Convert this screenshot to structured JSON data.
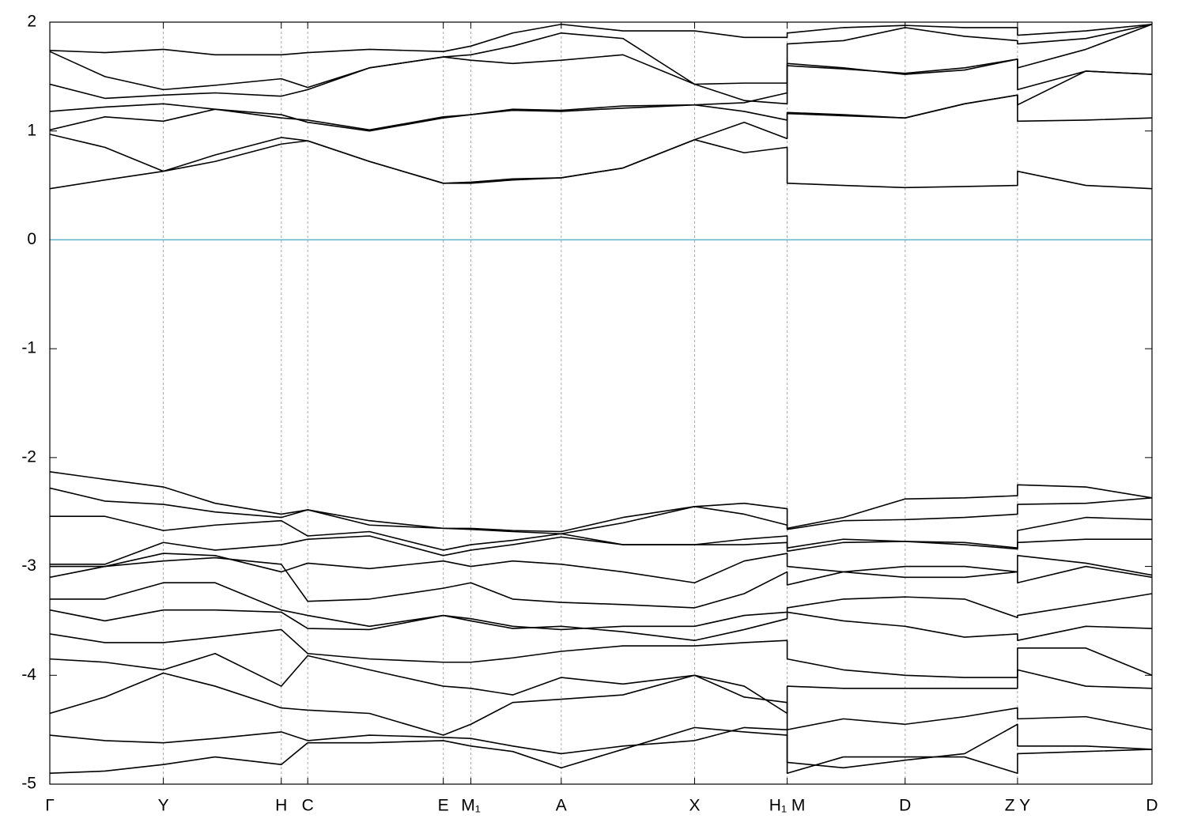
{
  "chart_data": {
    "type": "line",
    "x": [
      0,
      0.05,
      0.103,
      0.15,
      0.21,
      0.234,
      0.29,
      0.357,
      0.382,
      0.42,
      0.464,
      0.52,
      0.585,
      0.63,
      0.669,
      0.669,
      0.72,
      0.776,
      0.83,
      0.878,
      0.878,
      0.94,
      1
    ],
    "xlim": [
      0,
      1
    ],
    "xticks": [
      {
        "value": 0,
        "label": "Γ"
      },
      {
        "value": 0.103,
        "label": "Y"
      },
      {
        "value": 0.21,
        "label": "H"
      },
      {
        "value": 0.234,
        "label": "C"
      },
      {
        "value": 0.357,
        "label": "E"
      },
      {
        "value": 0.382,
        "label": "M₁"
      },
      {
        "value": 0.464,
        "label": "A"
      },
      {
        "value": 0.585,
        "label": "X"
      },
      {
        "value": 0.669,
        "label": "H₁ M"
      },
      {
        "value": 0.776,
        "label": "D"
      },
      {
        "value": 0.878,
        "label": "Z Y"
      },
      {
        "value": 1,
        "label": "D"
      }
    ],
    "ylim": [
      -5,
      2
    ],
    "yticks": [
      -5,
      -4,
      -3,
      -2,
      -1,
      0,
      1,
      2
    ],
    "grid": "x",
    "line_color": "#000000",
    "fermi_level": 0,
    "fermi_color": "#5ab4c8",
    "series": [
      {
        "values": [
          0.47,
          0.55,
          0.63,
          0.72,
          0.88,
          0.91,
          0.72,
          0.52,
          0.52,
          0.55,
          0.57,
          0.66,
          0.92,
          0.8,
          0.85,
          0.52,
          0.5,
          0.48,
          0.49,
          0.5,
          0.63,
          0.5,
          0.47
        ]
      },
      {
        "values": [
          0.97,
          0.85,
          0.63,
          0.78,
          0.94,
          0.91,
          0.72,
          0.52,
          0.53,
          0.56,
          0.57,
          0.66,
          0.92,
          1.08,
          0.93,
          1.16,
          1.14,
          1.12,
          1.25,
          1.33,
          1.09,
          1.1,
          1.12
        ]
      },
      {
        "values": [
          1.01,
          1.13,
          1.09,
          1.2,
          1.15,
          1.08,
          1.0,
          1.12,
          1.15,
          1.19,
          1.18,
          1.21,
          1.24,
          1.18,
          1.1,
          1.17,
          1.15,
          1.12,
          1.25,
          1.33,
          1.24,
          1.55,
          1.52
        ]
      },
      {
        "values": [
          1.18,
          1.22,
          1.25,
          1.2,
          1.12,
          1.1,
          1.01,
          1.13,
          1.15,
          1.2,
          1.19,
          1.23,
          1.24,
          1.26,
          1.35,
          1.6,
          1.57,
          1.53,
          1.58,
          1.66,
          1.38,
          1.55,
          1.52
        ]
      },
      {
        "values": [
          1.43,
          1.3,
          1.33,
          1.35,
          1.32,
          1.38,
          1.58,
          1.68,
          1.65,
          1.62,
          1.65,
          1.7,
          1.43,
          1.44,
          1.44,
          1.62,
          1.58,
          1.52,
          1.56,
          1.66,
          1.58,
          1.75,
          1.98
        ]
      },
      {
        "values": [
          1.73,
          1.5,
          1.38,
          1.42,
          1.48,
          1.4,
          1.58,
          1.68,
          1.7,
          1.78,
          1.9,
          1.85,
          1.43,
          1.28,
          1.25,
          1.8,
          1.83,
          1.95,
          1.87,
          1.83,
          1.8,
          1.85,
          1.98
        ]
      },
      {
        "values": [
          1.74,
          1.72,
          1.75,
          1.7,
          1.7,
          1.72,
          1.75,
          1.73,
          1.78,
          1.9,
          1.98,
          1.92,
          1.92,
          1.86,
          1.86,
          1.9,
          1.95,
          1.97,
          1.95,
          1.95,
          1.88,
          1.92,
          1.98
        ]
      },
      {
        "values": [
          -2.13,
          -2.2,
          -2.27,
          -2.42,
          -2.52,
          -2.48,
          -2.58,
          -2.65,
          -2.65,
          -2.67,
          -2.68,
          -2.55,
          -2.45,
          -2.42,
          -2.47,
          -2.65,
          -2.55,
          -2.38,
          -2.37,
          -2.35,
          -2.25,
          -2.27,
          -2.37
        ]
      },
      {
        "values": [
          -2.28,
          -2.4,
          -2.43,
          -2.5,
          -2.55,
          -2.48,
          -2.62,
          -2.65,
          -2.66,
          -2.68,
          -2.7,
          -2.6,
          -2.45,
          -2.52,
          -2.62,
          -2.66,
          -2.58,
          -2.57,
          -2.55,
          -2.52,
          -2.43,
          -2.42,
          -2.37
        ]
      },
      {
        "values": [
          -2.54,
          -2.54,
          -2.67,
          -2.62,
          -2.58,
          -2.72,
          -2.68,
          -2.85,
          -2.8,
          -2.76,
          -2.7,
          -2.8,
          -2.8,
          -2.75,
          -2.72,
          -2.83,
          -2.75,
          -2.77,
          -2.78,
          -2.83,
          -2.67,
          -2.55,
          -2.57
        ]
      },
      {
        "values": [
          -2.98,
          -2.98,
          -2.78,
          -2.85,
          -2.8,
          -2.75,
          -2.72,
          -2.9,
          -2.85,
          -2.8,
          -2.73,
          -2.8,
          -2.8,
          -2.8,
          -2.78,
          -2.86,
          -2.78,
          -2.77,
          -2.8,
          -2.84,
          -2.78,
          -2.75,
          -2.75
        ]
      },
      {
        "values": [
          -3.0,
          -3.0,
          -2.88,
          -2.9,
          -3.05,
          -2.97,
          -3.02,
          -2.95,
          -3.0,
          -2.95,
          -2.98,
          -3.05,
          -3.15,
          -2.95,
          -2.88,
          -3.0,
          -3.05,
          -3.1,
          -3.1,
          -3.05,
          -2.9,
          -2.97,
          -3.08
        ]
      },
      {
        "values": [
          -3.1,
          -3.0,
          -2.95,
          -2.92,
          -2.98,
          -3.32,
          -3.3,
          -3.2,
          -3.15,
          -3.3,
          -3.33,
          -3.35,
          -3.38,
          -3.25,
          -3.05,
          -3.17,
          -3.05,
          -3.0,
          -3.0,
          -3.05,
          -3.15,
          -3.0,
          -3.1
        ]
      },
      {
        "values": [
          -3.3,
          -3.3,
          -3.15,
          -3.15,
          -3.4,
          -3.45,
          -3.55,
          -3.45,
          -3.48,
          -3.55,
          -3.58,
          -3.55,
          -3.55,
          -3.45,
          -3.42,
          -3.38,
          -3.3,
          -3.28,
          -3.3,
          -3.47,
          -3.45,
          -3.35,
          -3.25
        ]
      },
      {
        "values": [
          -3.4,
          -3.5,
          -3.4,
          -3.4,
          -3.42,
          -3.57,
          -3.58,
          -3.45,
          -3.5,
          -3.57,
          -3.55,
          -3.6,
          -3.68,
          -3.58,
          -3.48,
          -3.42,
          -3.5,
          -3.55,
          -3.65,
          -3.62,
          -3.68,
          -3.55,
          -3.57
        ]
      },
      {
        "values": [
          -3.62,
          -3.7,
          -3.7,
          -3.65,
          -3.58,
          -3.8,
          -3.85,
          -3.88,
          -3.88,
          -3.84,
          -3.78,
          -3.73,
          -3.73,
          -3.7,
          -3.68,
          -3.85,
          -3.95,
          -4.0,
          -4.02,
          -4.02,
          -3.75,
          -3.75,
          -4.0
        ]
      },
      {
        "values": [
          -3.85,
          -3.88,
          -3.95,
          -3.8,
          -4.1,
          -3.82,
          -3.95,
          -4.1,
          -4.12,
          -4.18,
          -4.02,
          -4.08,
          -4.0,
          -4.1,
          -4.35,
          -4.1,
          -4.12,
          -4.12,
          -4.12,
          -4.12,
          -3.95,
          -4.1,
          -4.12
        ]
      },
      {
        "values": [
          -4.35,
          -4.2,
          -3.98,
          -4.1,
          -4.3,
          -4.32,
          -4.35,
          -4.55,
          -4.45,
          -4.25,
          -4.22,
          -4.18,
          -4.0,
          -4.2,
          -4.25,
          -4.5,
          -4.4,
          -4.45,
          -4.38,
          -4.3,
          -4.4,
          -4.38,
          -4.5
        ]
      },
      {
        "values": [
          -4.55,
          -4.6,
          -4.62,
          -4.58,
          -4.52,
          -4.6,
          -4.55,
          -4.57,
          -4.58,
          -4.65,
          -4.72,
          -4.65,
          -4.6,
          -4.48,
          -4.5,
          -4.8,
          -4.85,
          -4.78,
          -4.72,
          -4.45,
          -4.65,
          -4.65,
          -4.68
        ]
      },
      {
        "values": [
          -4.9,
          -4.88,
          -4.82,
          -4.75,
          -4.82,
          -4.62,
          -4.62,
          -4.6,
          -4.65,
          -4.7,
          -4.85,
          -4.68,
          -4.48,
          -4.52,
          -4.55,
          -4.9,
          -4.75,
          -4.75,
          -4.75,
          -4.9,
          -4.72,
          -4.7,
          -4.68
        ]
      }
    ]
  }
}
